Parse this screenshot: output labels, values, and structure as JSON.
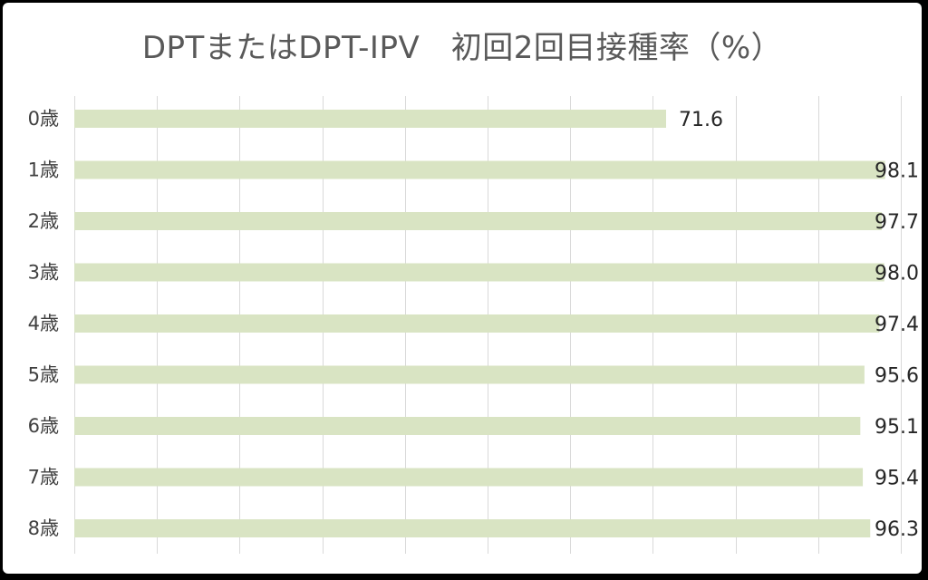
{
  "chart_data": {
    "type": "bar",
    "orientation": "horizontal",
    "title": "DPTまたはDPT-IPV　初回2回目接種率（%）",
    "categories": [
      "0歳",
      "1歳",
      "2歳",
      "3歳",
      "4歳",
      "5歳",
      "6歳",
      "7歳",
      "8歳"
    ],
    "values": [
      71.6,
      98.1,
      97.7,
      98.0,
      97.4,
      95.6,
      95.1,
      95.4,
      96.3
    ],
    "value_labels": [
      "71.6",
      "98.1",
      "97.7",
      "98.0",
      "97.4",
      "95.6",
      "95.1",
      "95.4",
      "96.3"
    ],
    "xlim": [
      0,
      100
    ],
    "grid": true,
    "legend": false,
    "bar_color": "#d9e4c3"
  }
}
